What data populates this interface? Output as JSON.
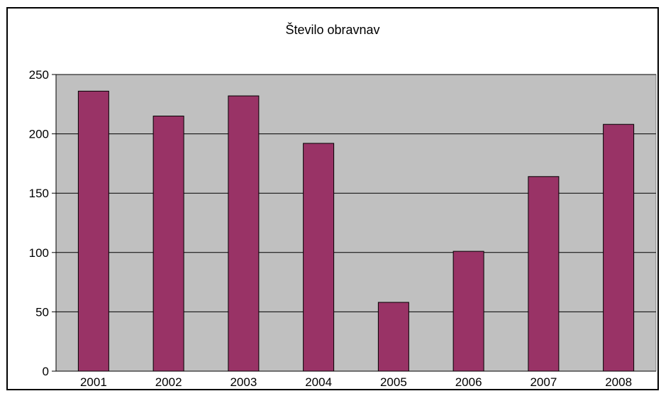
{
  "chart_data": {
    "type": "bar",
    "title": "Število obravnav",
    "xlabel": "",
    "ylabel": "",
    "categories": [
      "2001",
      "2002",
      "2003",
      "2004",
      "2005",
      "2006",
      "2007",
      "2008"
    ],
    "values": [
      236,
      215,
      232,
      192,
      58,
      101,
      164,
      208
    ],
    "ylim": [
      0,
      250
    ],
    "yticks": [
      0,
      50,
      100,
      150,
      200,
      250
    ],
    "grid": true,
    "legend": "none",
    "colors": {
      "bar": "#993366",
      "plot_background": "#c0c0c0",
      "gridline": "#000000"
    }
  }
}
